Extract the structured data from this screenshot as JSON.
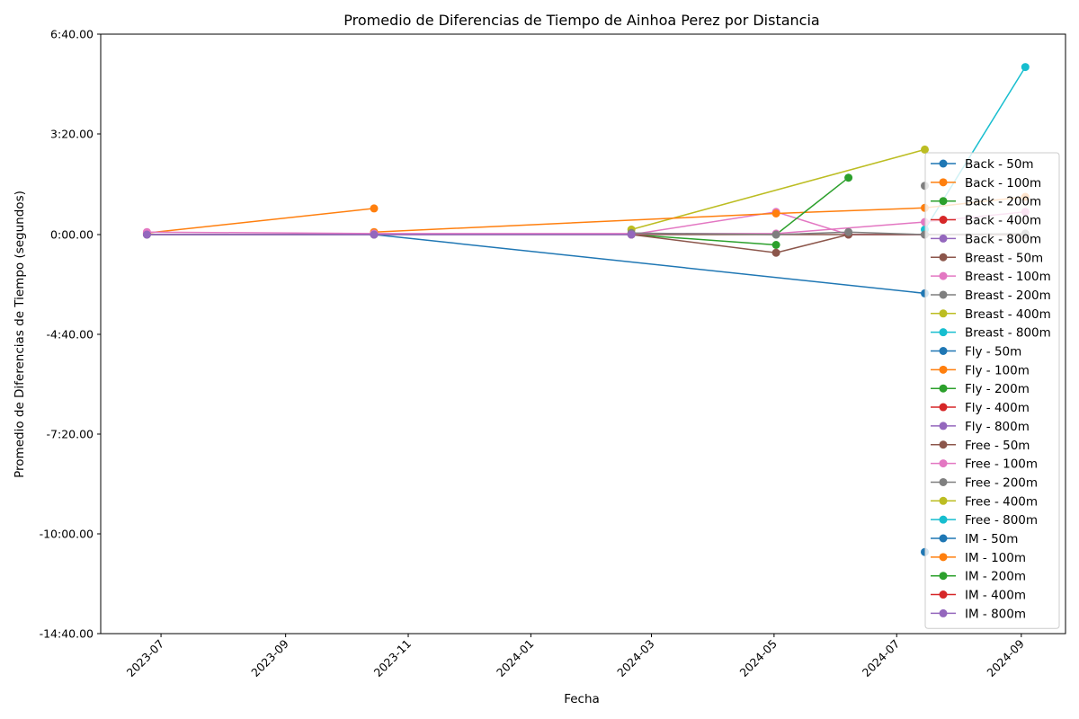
{
  "chart_data": {
    "type": "line",
    "title": "Promedio de Diferencias de Tiempo de Ainhoa Perez por Distancia",
    "xlabel": "Fecha",
    "ylabel": "Promedio de Diferencias de Tiempo (segundos)",
    "xlim": [
      "2023-06-01",
      "2024-09-23"
    ],
    "ylim": [
      -880,
      400
    ],
    "x_ticks": [
      "2023-07",
      "2023-09",
      "2023-11",
      "2024-01",
      "2024-03",
      "2024-05",
      "2024-07",
      "2024-09"
    ],
    "y_ticks": [
      {
        "value": -880,
        "label": "-14:40.00"
      },
      {
        "value": -600,
        "label": "-10:00.00"
      },
      {
        "value": -440,
        "label": "-7:20.00"
      },
      {
        "value": -280,
        "label": "-4:40.00"
      },
      {
        "value": 0,
        "label": "0:00.00"
      },
      {
        "value": 200,
        "label": "3:20.00"
      },
      {
        "value": 400,
        "label": "6:40.00"
      }
    ],
    "legend_position": "lower-right",
    "grid": false,
    "series": [
      {
        "name": "Back - 50m",
        "color": "#1f77b4",
        "points": [
          [
            "2023-06-24",
            0
          ],
          [
            "2023-10-15",
            0
          ],
          [
            "2024-07-15",
            -165
          ]
        ]
      },
      {
        "name": "Back - 100m",
        "color": "#ff7f0e",
        "points": [
          [
            "2023-06-24",
            3
          ],
          [
            "2023-10-15",
            52
          ]
        ]
      },
      {
        "name": "Back - 200m",
        "color": "#2ca02c",
        "points": [
          [
            "2024-02-20",
            0
          ],
          [
            "2024-05-02",
            -29
          ]
        ]
      },
      {
        "name": "Back - 400m",
        "color": "#d62728",
        "points": []
      },
      {
        "name": "Back - 800m",
        "color": "#9467bd",
        "points": []
      },
      {
        "name": "Breast - 50m",
        "color": "#8c564b",
        "points": [
          [
            "2024-02-20",
            0
          ],
          [
            "2024-05-02",
            -51
          ],
          [
            "2024-06-07",
            0
          ],
          [
            "2024-07-15",
            0
          ],
          [
            "2024-09-03",
            0
          ]
        ]
      },
      {
        "name": "Breast - 100m",
        "color": "#e377c2",
        "points": [
          [
            "2024-02-20",
            0
          ],
          [
            "2024-05-02",
            45
          ],
          [
            "2024-06-07",
            0
          ],
          [
            "2024-07-15",
            0
          ]
        ]
      },
      {
        "name": "Breast - 200m",
        "color": "#7f7f7f",
        "points": [
          [
            "2024-07-15",
            97
          ]
        ]
      },
      {
        "name": "Breast - 400m",
        "color": "#bcbd22",
        "points": [
          [
            "2024-02-20",
            10
          ],
          [
            "2024-07-15",
            169
          ]
        ]
      },
      {
        "name": "Breast - 800m",
        "color": "#17becf",
        "points": [
          [
            "2024-07-15",
            10
          ],
          [
            "2024-09-03",
            334
          ]
        ]
      },
      {
        "name": "Fly - 50m",
        "color": "#1f77b4",
        "points": []
      },
      {
        "name": "Fly - 100m",
        "color": "#ff7f0e",
        "points": [
          [
            "2023-10-15",
            5
          ],
          [
            "2024-05-02",
            42
          ],
          [
            "2024-07-15",
            53
          ],
          [
            "2024-09-03",
            75
          ]
        ]
      },
      {
        "name": "Fly - 200m",
        "color": "#2ca02c",
        "points": [
          [
            "2024-05-02",
            0
          ],
          [
            "2024-06-07",
            113
          ]
        ]
      },
      {
        "name": "Fly - 400m",
        "color": "#d62728",
        "points": []
      },
      {
        "name": "Fly - 800m",
        "color": "#9467bd",
        "points": []
      },
      {
        "name": "Free - 50m",
        "color": "#8c564b",
        "points": [
          [
            "2023-06-24",
            0
          ],
          [
            "2023-10-15",
            0
          ],
          [
            "2024-06-07",
            0
          ],
          [
            "2024-09-03",
            0
          ]
        ]
      },
      {
        "name": "Free - 100m",
        "color": "#e377c2",
        "points": [
          [
            "2023-06-24",
            5
          ],
          [
            "2023-10-15",
            2
          ],
          [
            "2024-05-02",
            2
          ],
          [
            "2024-07-15",
            25
          ],
          [
            "2024-09-03",
            45
          ]
        ]
      },
      {
        "name": "Free - 200m",
        "color": "#7f7f7f",
        "points": [
          [
            "2024-02-20",
            3
          ],
          [
            "2024-05-02",
            0
          ],
          [
            "2024-06-07",
            5
          ],
          [
            "2024-07-15",
            0
          ],
          [
            "2024-09-03",
            2
          ]
        ]
      },
      {
        "name": "Free - 400m",
        "color": "#bcbd22",
        "points": []
      },
      {
        "name": "Free - 800m",
        "color": "#17becf",
        "points": []
      },
      {
        "name": "IM - 50m",
        "color": "#1f77b4",
        "points": [
          [
            "2024-07-15",
            -651
          ]
        ]
      },
      {
        "name": "IM - 100m",
        "color": "#ff7f0e",
        "points": []
      },
      {
        "name": "IM - 200m",
        "color": "#2ca02c",
        "points": []
      },
      {
        "name": "IM - 400m",
        "color": "#d62728",
        "points": []
      },
      {
        "name": "IM - 800m",
        "color": "#9467bd",
        "points": [
          [
            "2023-06-24",
            0
          ],
          [
            "2023-10-15",
            0
          ],
          [
            "2024-02-20",
            0
          ]
        ]
      }
    ]
  }
}
